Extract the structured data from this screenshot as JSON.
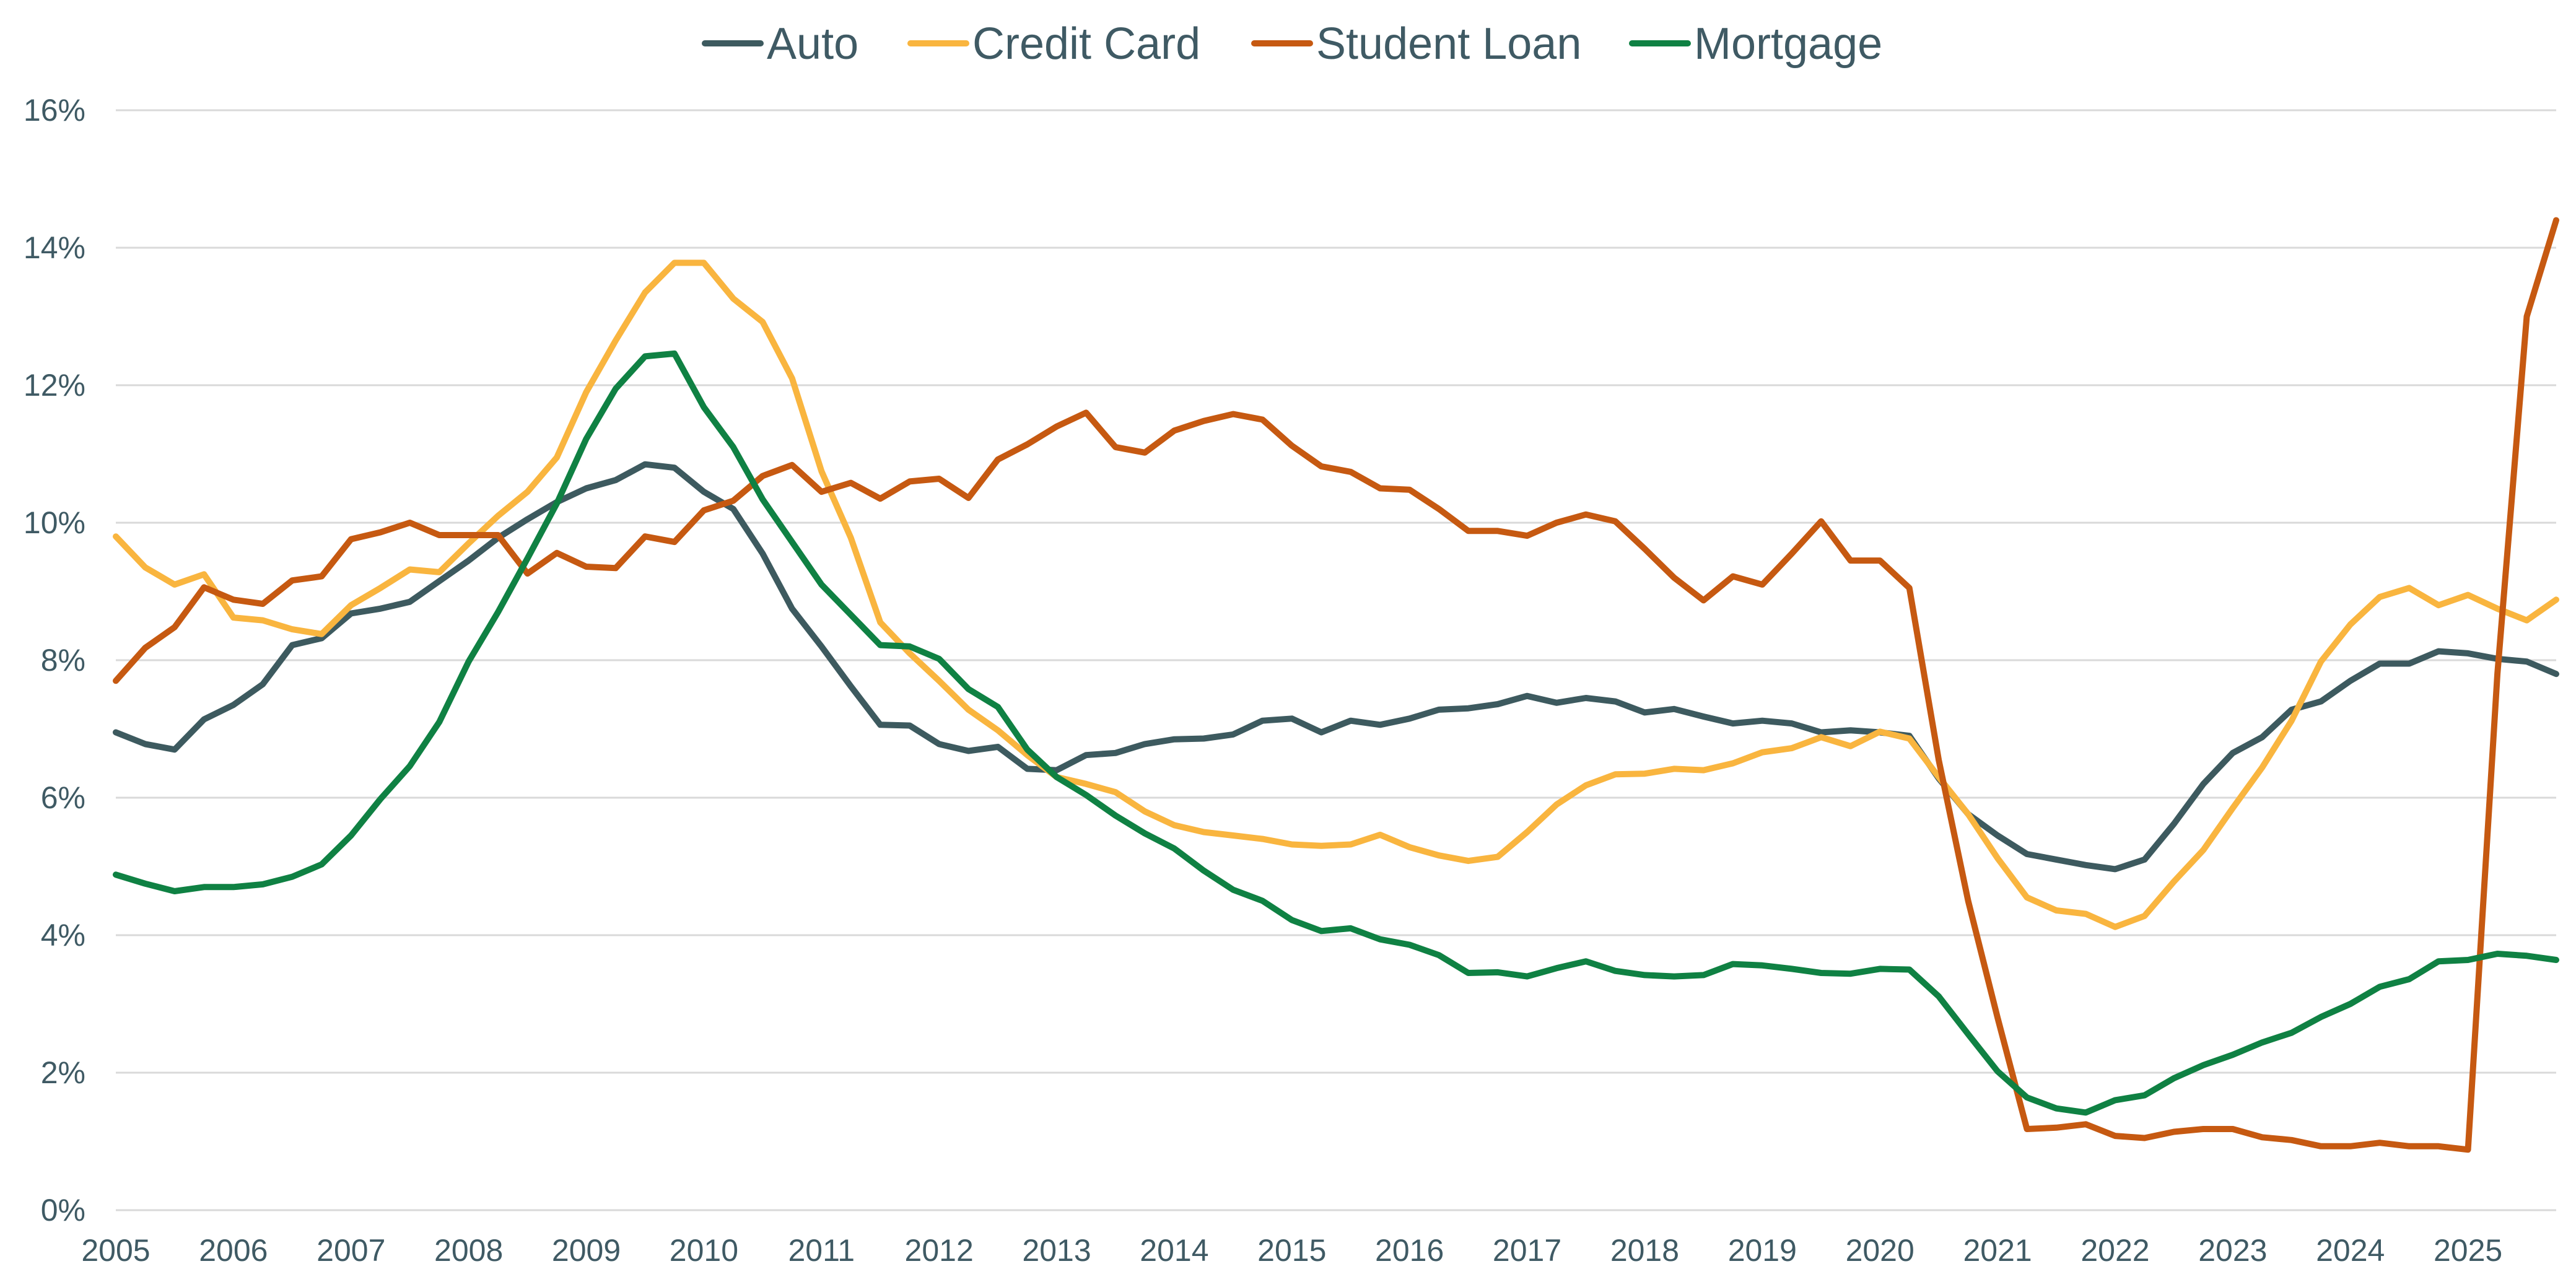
{
  "chart_data": {
    "type": "line",
    "title": "",
    "xlabel": "",
    "ylabel": "",
    "x_tick_labels": [
      "2005",
      "2006",
      "2007",
      "2008",
      "2009",
      "2010",
      "2011",
      "2012",
      "2013",
      "2014",
      "2015",
      "2016",
      "2017",
      "2018",
      "2019",
      "2020",
      "2021",
      "2022",
      "2023",
      "2024",
      "2025"
    ],
    "y_tick_labels": [
      "0%",
      "2%",
      "4%",
      "6%",
      "8%",
      "10%",
      "12%",
      "14%",
      "16%"
    ],
    "ylim": [
      0,
      16
    ],
    "xlim": [
      2005,
      2025.75
    ],
    "grid": true,
    "legend_position": "top-center",
    "series": [
      {
        "name": "Auto",
        "color": "#3d5a5f",
        "x": [
          2005,
          2005.25,
          2005.5,
          2005.75,
          2006,
          2006.25,
          2006.5,
          2006.75,
          2007,
          2007.25,
          2007.5,
          2007.75,
          2008,
          2008.25,
          2008.5,
          2008.75,
          2009,
          2009.25,
          2009.5,
          2009.75,
          2010,
          2010.25,
          2010.5,
          2010.75,
          2011,
          2011.25,
          2011.5,
          2011.75,
          2012,
          2012.25,
          2012.5,
          2012.75,
          2013,
          2013.25,
          2013.5,
          2013.75,
          2014,
          2014.25,
          2014.5,
          2014.75,
          2015,
          2015.25,
          2015.5,
          2015.75,
          2016,
          2016.25,
          2016.5,
          2016.75,
          2017,
          2017.25,
          2017.5,
          2017.75,
          2018,
          2018.25,
          2018.5,
          2018.75,
          2019,
          2019.25,
          2019.5,
          2019.75,
          2020,
          2020.25,
          2020.5,
          2020.75,
          2021,
          2021.25,
          2021.5,
          2021.75,
          2022,
          2022.25,
          2022.5,
          2022.75,
          2023,
          2023.25,
          2023.5,
          2023.75,
          2024,
          2024.25,
          2024.5,
          2024.75,
          2025,
          2025.25,
          2025.5,
          2025.75
        ],
        "values": [
          6.95,
          6.78,
          6.7,
          7.14,
          7.35,
          7.65,
          8.22,
          8.32,
          8.68,
          8.75,
          8.85,
          9.15,
          9.45,
          9.78,
          10.05,
          10.3,
          10.5,
          10.62,
          10.85,
          10.8,
          10.45,
          10.2,
          9.55,
          8.75,
          8.2,
          7.62,
          7.06,
          7.05,
          6.78,
          6.68,
          6.74,
          6.42,
          6.4,
          6.62,
          6.65,
          6.78,
          6.85,
          6.86,
          6.92,
          7.12,
          7.15,
          6.95,
          7.12,
          7.06,
          7.15,
          7.28,
          7.3,
          7.36,
          7.48,
          7.38,
          7.45,
          7.4,
          7.24,
          7.29,
          7.18,
          7.08,
          7.12,
          7.08,
          6.95,
          6.98,
          6.95,
          6.9,
          6.28,
          5.76,
          5.45,
          5.18,
          5.1,
          5.02,
          4.96,
          5.1,
          5.62,
          6.2,
          6.65,
          6.88,
          7.28,
          7.4,
          7.7,
          7.95,
          7.95,
          8.13,
          8.1,
          8.02,
          7.98,
          7.8
        ]
      },
      {
        "name": "Credit Card",
        "color": "#f9b53f",
        "x": [
          2005,
          2005.25,
          2005.5,
          2005.75,
          2006,
          2006.25,
          2006.5,
          2006.75,
          2007,
          2007.25,
          2007.5,
          2007.75,
          2008,
          2008.25,
          2008.5,
          2008.75,
          2009,
          2009.25,
          2009.5,
          2009.75,
          2010,
          2010.25,
          2010.5,
          2010.75,
          2011,
          2011.25,
          2011.5,
          2011.75,
          2012,
          2012.25,
          2012.5,
          2012.75,
          2013,
          2013.25,
          2013.5,
          2013.75,
          2014,
          2014.25,
          2014.5,
          2014.75,
          2015,
          2015.25,
          2015.5,
          2015.75,
          2016,
          2016.25,
          2016.5,
          2016.75,
          2017,
          2017.25,
          2017.5,
          2017.75,
          2018,
          2018.25,
          2018.5,
          2018.75,
          2019,
          2019.25,
          2019.5,
          2019.75,
          2020,
          2020.25,
          2020.5,
          2020.75,
          2021,
          2021.25,
          2021.5,
          2021.75,
          2022,
          2022.25,
          2022.5,
          2022.75,
          2023,
          2023.25,
          2023.5,
          2023.75,
          2024,
          2024.25,
          2024.5,
          2024.75,
          2025,
          2025.25,
          2025.5,
          2025.75
        ],
        "values": [
          9.8,
          9.35,
          9.1,
          9.25,
          8.62,
          8.58,
          8.45,
          8.38,
          8.8,
          9.05,
          9.32,
          9.28,
          9.7,
          10.1,
          10.45,
          10.95,
          11.9,
          12.65,
          13.35,
          13.78,
          13.78,
          13.26,
          12.92,
          12.1,
          10.75,
          9.78,
          8.55,
          8.1,
          7.7,
          7.28,
          6.98,
          6.62,
          6.3,
          6.2,
          6.08,
          5.8,
          5.6,
          5.5,
          5.45,
          5.4,
          5.32,
          5.3,
          5.32,
          5.46,
          5.28,
          5.16,
          5.08,
          5.14,
          5.5,
          5.9,
          6.18,
          6.34,
          6.35,
          6.42,
          6.4,
          6.5,
          6.66,
          6.72,
          6.88,
          6.75,
          6.96,
          6.86,
          6.3,
          5.76,
          5.12,
          4.55,
          4.36,
          4.31,
          4.12,
          4.28,
          4.78,
          5.24,
          5.85,
          6.44,
          7.12,
          7.98,
          8.52,
          8.92,
          9.05,
          8.8,
          8.95,
          8.75,
          8.58,
          8.88
        ]
      },
      {
        "name": "Student Loan",
        "color": "#c65911",
        "x": [
          2005,
          2005.25,
          2005.5,
          2005.75,
          2006,
          2006.25,
          2006.5,
          2006.75,
          2007,
          2007.25,
          2007.5,
          2007.75,
          2008,
          2008.25,
          2008.5,
          2008.75,
          2009,
          2009.25,
          2009.5,
          2009.75,
          2010,
          2010.25,
          2010.5,
          2010.75,
          2011,
          2011.25,
          2011.5,
          2011.75,
          2012,
          2012.25,
          2012.5,
          2012.75,
          2013,
          2013.25,
          2013.5,
          2013.75,
          2014,
          2014.25,
          2014.5,
          2014.75,
          2015,
          2015.25,
          2015.5,
          2015.75,
          2016,
          2016.25,
          2016.5,
          2016.75,
          2017,
          2017.25,
          2017.5,
          2017.75,
          2018,
          2018.25,
          2018.5,
          2018.75,
          2019,
          2019.25,
          2019.5,
          2019.75,
          2020,
          2020.25,
          2020.5,
          2020.75,
          2021,
          2021.25,
          2021.5,
          2021.75,
          2022,
          2022.25,
          2022.5,
          2022.75,
          2023,
          2023.25,
          2023.5,
          2023.75,
          2024,
          2024.25,
          2024.5,
          2024.75,
          2025,
          2025.25,
          2025.5,
          2025.75
        ],
        "values": [
          7.7,
          8.18,
          8.48,
          9.06,
          8.88,
          8.82,
          9.16,
          9.22,
          9.76,
          9.86,
          10.0,
          9.82,
          9.82,
          9.82,
          9.26,
          9.56,
          9.36,
          9.34,
          9.8,
          9.72,
          10.18,
          10.32,
          10.68,
          10.84,
          10.45,
          10.58,
          10.35,
          10.6,
          10.64,
          10.36,
          10.92,
          11.14,
          11.4,
          11.6,
          11.1,
          11.02,
          11.34,
          11.48,
          11.58,
          11.5,
          11.12,
          10.82,
          10.74,
          10.5,
          10.48,
          10.2,
          9.88,
          9.88,
          9.81,
          10.0,
          10.12,
          10.02,
          9.62,
          9.2,
          8.87,
          9.22,
          9.1,
          9.55,
          10.02,
          9.45,
          9.45,
          9.05,
          6.55,
          4.5,
          2.8,
          1.18,
          1.2,
          1.25,
          1.08,
          1.05,
          1.14,
          1.18,
          1.18,
          1.06,
          1.02,
          0.93,
          0.93,
          0.98,
          0.93,
          0.93,
          0.88,
          7.8,
          13.0,
          14.4
        ]
      },
      {
        "name": "Mortgage",
        "color": "#0f8143",
        "x": [
          2005,
          2005.25,
          2005.5,
          2005.75,
          2006,
          2006.25,
          2006.5,
          2006.75,
          2007,
          2007.25,
          2007.5,
          2007.75,
          2008,
          2008.25,
          2008.5,
          2008.75,
          2009,
          2009.25,
          2009.5,
          2009.75,
          2010,
          2010.25,
          2010.5,
          2010.75,
          2011,
          2011.25,
          2011.5,
          2011.75,
          2012,
          2012.25,
          2012.5,
          2012.75,
          2013,
          2013.25,
          2013.5,
          2013.75,
          2014,
          2014.25,
          2014.5,
          2014.75,
          2015,
          2015.25,
          2015.5,
          2015.75,
          2016,
          2016.25,
          2016.5,
          2016.75,
          2017,
          2017.25,
          2017.5,
          2017.75,
          2018,
          2018.25,
          2018.5,
          2018.75,
          2019,
          2019.25,
          2019.5,
          2019.75,
          2020,
          2020.25,
          2020.5,
          2020.75,
          2021,
          2021.25,
          2021.5,
          2021.75,
          2022,
          2022.25,
          2022.5,
          2022.75,
          2023,
          2023.25,
          2023.5,
          2023.75,
          2024,
          2024.25,
          2024.5,
          2024.75,
          2025,
          2025.25,
          2025.5,
          2025.75
        ],
        "values": [
          4.88,
          4.75,
          4.64,
          4.7,
          4.7,
          4.74,
          4.85,
          5.03,
          5.45,
          5.98,
          6.46,
          7.1,
          7.98,
          8.7,
          9.48,
          10.28,
          11.22,
          11.95,
          12.42,
          12.46,
          11.68,
          11.1,
          10.34,
          9.72,
          9.1,
          8.66,
          8.22,
          8.2,
          8.02,
          7.58,
          7.32,
          6.7,
          6.3,
          6.04,
          5.74,
          5.48,
          5.26,
          4.94,
          4.66,
          4.5,
          4.22,
          4.06,
          4.1,
          3.94,
          3.86,
          3.71,
          3.45,
          3.46,
          3.4,
          3.52,
          3.62,
          3.48,
          3.42,
          3.4,
          3.42,
          3.58,
          3.56,
          3.51,
          3.45,
          3.44,
          3.51,
          3.5,
          3.11,
          2.56,
          2.02,
          1.64,
          1.48,
          1.42,
          1.6,
          1.67,
          1.92,
          2.11,
          2.26,
          2.44,
          2.58,
          2.81,
          3.0,
          3.25,
          3.36,
          3.62,
          3.64,
          3.73,
          3.7,
          3.64
        ]
      }
    ]
  }
}
